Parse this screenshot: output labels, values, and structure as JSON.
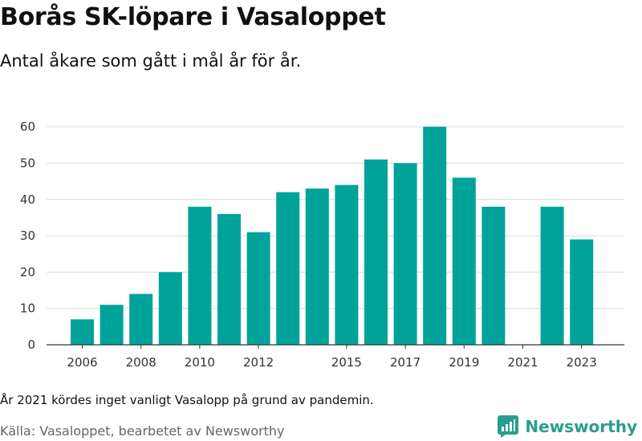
{
  "header": {
    "title": "Borås SK-löpare i Vasaloppet",
    "subtitle": "Antal åkare som gått i mål år för år."
  },
  "footer": {
    "note": "År 2021 kördes inget vanligt Vasalopp på grund av pandemin.",
    "source": "Källa: Vasaloppet, bearbetet av Newsworthy",
    "brand": "Newsworthy"
  },
  "colors": {
    "bar": "#00a39a",
    "brand": "#2a9d8f",
    "grid": "#d9d9d9",
    "axis": "#333333"
  },
  "brand_icon": "newsworthy-logo-icon",
  "chart_data": {
    "type": "bar",
    "title": "Borås SK-löpare i Vasaloppet",
    "subtitle": "Antal åkare som gått i mål år för år.",
    "categories": [
      "2006",
      "2007",
      "2008",
      "2009",
      "2010",
      "2011",
      "2012",
      "2013",
      "2014",
      "2015",
      "2016",
      "2017",
      "2018",
      "2019",
      "2020",
      "2021",
      "2022",
      "2023"
    ],
    "values": [
      7,
      11,
      14,
      20,
      38,
      36,
      31,
      42,
      43,
      44,
      51,
      50,
      60,
      46,
      38,
      0,
      38,
      29
    ],
    "x_tick_labels": [
      "2006",
      "2008",
      "2010",
      "2012",
      "2015",
      "2017",
      "2019",
      "2021",
      "2023"
    ],
    "y_ticks": [
      0,
      10,
      20,
      30,
      40,
      50,
      60
    ],
    "ylim": [
      0,
      64
    ],
    "grid": true,
    "legend": "none",
    "xlabel": "",
    "ylabel": ""
  }
}
